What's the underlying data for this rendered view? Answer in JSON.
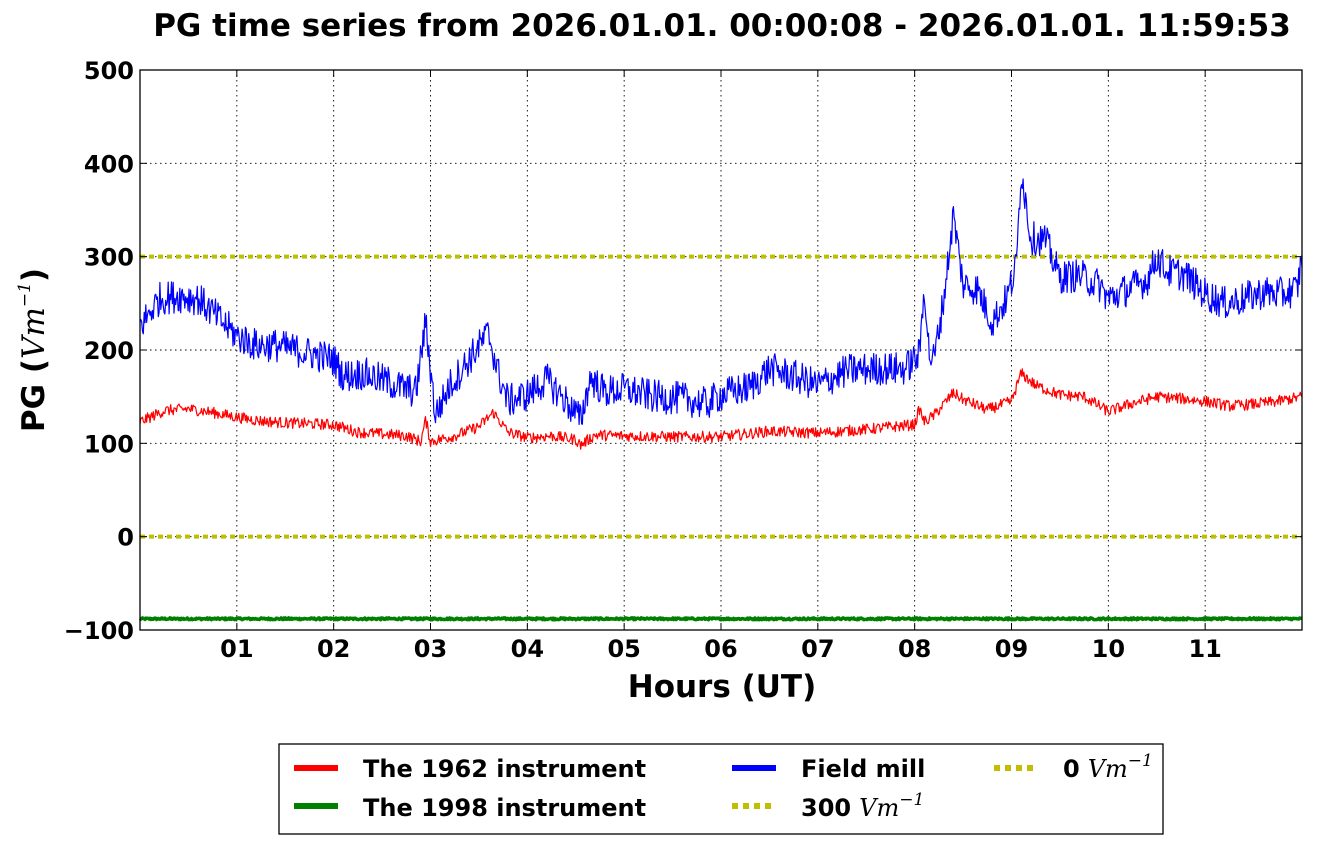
{
  "chart_data": {
    "type": "line",
    "title": "PG time series from 2026.01.01. 00:00:08 - 2026.01.01. 11:59:53",
    "xlabel": "Hours (UT)",
    "ylabel": {
      "prefix": "PG (",
      "unit": "Vm",
      "exponent": "−1",
      "suffix": ")"
    },
    "xlim": [
      0,
      12
    ],
    "ylim": [
      -100,
      500
    ],
    "xticks": [
      1,
      2,
      3,
      4,
      5,
      6,
      7,
      8,
      9,
      10,
      11
    ],
    "xtick_labels": [
      "01",
      "02",
      "03",
      "04",
      "05",
      "06",
      "07",
      "08",
      "09",
      "10",
      "11"
    ],
    "yticks": [
      -100,
      0,
      100,
      200,
      300,
      400,
      500
    ],
    "ytick_labels": [
      "−100",
      "0",
      "100",
      "200",
      "300",
      "400",
      "500"
    ],
    "grid": true,
    "legend_position": "below",
    "series": [
      {
        "name": "The 1962 instrument",
        "color": "#ff0000",
        "style": "solid",
        "x": [
          0,
          0.25,
          0.5,
          0.75,
          1,
          1.25,
          1.5,
          1.75,
          2,
          2.25,
          2.5,
          2.75,
          2.9,
          2.95,
          3,
          3.25,
          3.5,
          3.65,
          3.8,
          4,
          4.25,
          4.5,
          4.55,
          4.7,
          5,
          5.5,
          6,
          6.5,
          7,
          7.5,
          8,
          8.05,
          8.1,
          8.2,
          8.4,
          8.5,
          8.75,
          9,
          9.1,
          9.25,
          9.5,
          9.75,
          10,
          10.25,
          10.5,
          10.75,
          11,
          11.25,
          11.5,
          11.75,
          12
        ],
        "values": [
          123,
          135,
          137,
          133,
          128,
          124,
          122,
          121,
          120,
          112,
          110,
          108,
          102,
          125,
          102,
          108,
          118,
          133,
          112,
          106,
          108,
          104,
          98,
          109,
          108,
          107,
          107,
          113,
          111,
          115,
          120,
          137,
          123,
          130,
          154,
          147,
          136,
          145,
          175,
          162,
          152,
          150,
          134,
          143,
          150,
          148,
          145,
          140,
          142,
          145,
          150
        ],
        "noise": 6
      },
      {
        "name": "The 1998 instrument",
        "color": "#008000",
        "style": "solid",
        "x": [
          0,
          12
        ],
        "values": [
          -88,
          -88
        ],
        "noise": 1
      },
      {
        "name": "Field mill",
        "color": "#0000ff",
        "style": "solid",
        "x": [
          0,
          0.2,
          0.4,
          0.6,
          0.8,
          1,
          1.2,
          1.4,
          1.6,
          1.8,
          2,
          2.1,
          2.3,
          2.5,
          2.7,
          2.85,
          2.95,
          3.05,
          3.2,
          3.4,
          3.6,
          3.7,
          3.8,
          4,
          4.2,
          4.4,
          4.55,
          4.65,
          4.8,
          5,
          5.3,
          5.6,
          5.85,
          6,
          6.3,
          6.5,
          6.8,
          7,
          7.3,
          7.6,
          7.9,
          8.05,
          8.1,
          8.15,
          8.2,
          8.3,
          8.4,
          8.5,
          8.65,
          8.8,
          8.95,
          9.05,
          9.1,
          9.2,
          9.35,
          9.5,
          9.7,
          9.9,
          10,
          10.2,
          10.4,
          10.5,
          10.6,
          10.8,
          11,
          11.2,
          11.4,
          11.6,
          11.8,
          11.95,
          12
        ],
        "values": [
          225,
          255,
          258,
          255,
          235,
          215,
          205,
          205,
          200,
          195,
          190,
          172,
          175,
          168,
          160,
          155,
          230,
          130,
          162,
          190,
          218,
          175,
          145,
          152,
          168,
          145,
          125,
          170,
          155,
          158,
          150,
          148,
          142,
          152,
          160,
          180,
          170,
          162,
          178,
          180,
          180,
          195,
          270,
          195,
          190,
          255,
          345,
          270,
          265,
          230,
          255,
          290,
          395,
          320,
          318,
          278,
          280,
          270,
          255,
          265,
          275,
          300,
          285,
          280,
          260,
          250,
          255,
          262,
          260,
          265,
          300
        ],
        "noise": 18
      },
      {
        "name": "300",
        "legend_unit": "Vm",
        "legend_exponent": "−1",
        "color": "#bfbf00",
        "style": "dotted",
        "x": [
          0,
          12
        ],
        "values": [
          300,
          300
        ],
        "noise": 0
      },
      {
        "name": "0",
        "legend_unit": "Vm",
        "legend_exponent": "−1",
        "color": "#bfbf00",
        "style": "dotted",
        "x": [
          0,
          12
        ],
        "values": [
          0,
          0
        ],
        "noise": 0
      }
    ]
  }
}
